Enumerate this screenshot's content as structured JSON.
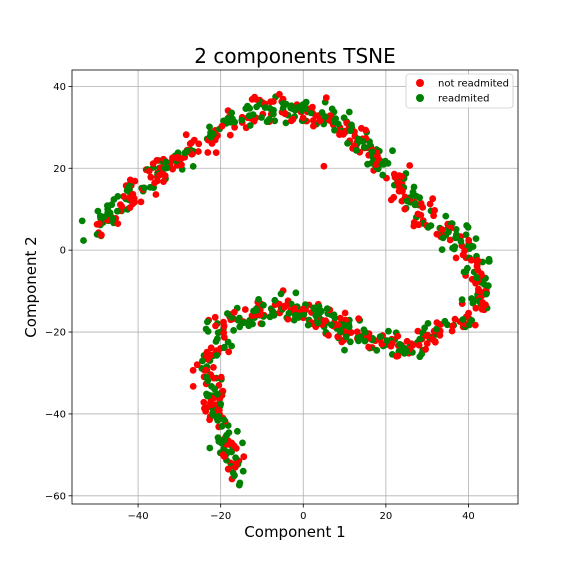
{
  "chart_data": {
    "type": "scatter",
    "title": "2 components TSNE",
    "xlabel": "Component 1",
    "ylabel": "Component 2",
    "xlim": [
      -56,
      52
    ],
    "ylim": [
      -62,
      44
    ],
    "xticks": [
      -40,
      -20,
      0,
      20,
      40
    ],
    "yticks": [
      -60,
      -40,
      -20,
      0,
      20,
      40
    ],
    "grid": true,
    "legend_position": "top-right",
    "series": [
      {
        "name": "not readmited",
        "color": "#ff0000"
      },
      {
        "name": "readmited",
        "color": "#008000"
      }
    ],
    "path": [
      [
        -50,
        5
      ],
      [
        -48,
        7
      ],
      [
        -46,
        9
      ],
      [
        -44,
        11
      ],
      [
        -42,
        13
      ],
      [
        -40,
        15
      ],
      [
        -37,
        17
      ],
      [
        -34,
        20
      ],
      [
        -31,
        22
      ],
      [
        -28,
        24
      ],
      [
        -25,
        26
      ],
      [
        -22,
        28
      ],
      [
        -19,
        30
      ],
      [
        -16,
        32
      ],
      [
        -13,
        34
      ],
      [
        -10,
        35
      ],
      [
        -7,
        35
      ],
      [
        -4,
        34
      ],
      [
        -1,
        34
      ],
      [
        2,
        34
      ],
      [
        5,
        33
      ],
      [
        8,
        31
      ],
      [
        11,
        29
      ],
      [
        14,
        27
      ],
      [
        17,
        24
      ],
      [
        20,
        20
      ],
      [
        23,
        16
      ],
      [
        26,
        13
      ],
      [
        29,
        9
      ],
      [
        32,
        6
      ],
      [
        35,
        4
      ],
      [
        38,
        2
      ],
      [
        41,
        0
      ],
      [
        42,
        -4
      ],
      [
        43,
        -7
      ],
      [
        43,
        -10
      ],
      [
        42,
        -13
      ],
      [
        41,
        -16
      ],
      [
        38,
        -17
      ],
      [
        35,
        -19
      ],
      [
        32,
        -21
      ],
      [
        29,
        -23
      ],
      [
        26,
        -24
      ],
      [
        23,
        -24
      ],
      [
        20,
        -22
      ],
      [
        17,
        -22
      ],
      [
        14,
        -21
      ],
      [
        11,
        -21
      ],
      [
        8,
        -19
      ],
      [
        5,
        -17
      ],
      [
        2,
        -15
      ],
      [
        -1,
        -15
      ],
      [
        -4,
        -14
      ],
      [
        -7,
        -14
      ],
      [
        -10,
        -15
      ],
      [
        -13,
        -16
      ],
      [
        -16,
        -17
      ],
      [
        -19,
        -18
      ],
      [
        -21,
        -20
      ],
      [
        -22,
        -24
      ],
      [
        -23,
        -28
      ],
      [
        -23,
        -32
      ],
      [
        -22,
        -36
      ],
      [
        -20,
        -40
      ],
      [
        -19,
        -44
      ],
      [
        -18,
        -48
      ],
      [
        -17,
        -51
      ],
      [
        -16,
        -54
      ],
      [
        -15,
        -55
      ]
    ],
    "outliers": [
      {
        "x": 5,
        "y": 20.5,
        "series": 0
      },
      {
        "x": 7,
        "y": 34.5,
        "series": 1
      }
    ],
    "spread": 1.6,
    "count": 900,
    "seed": 7
  }
}
